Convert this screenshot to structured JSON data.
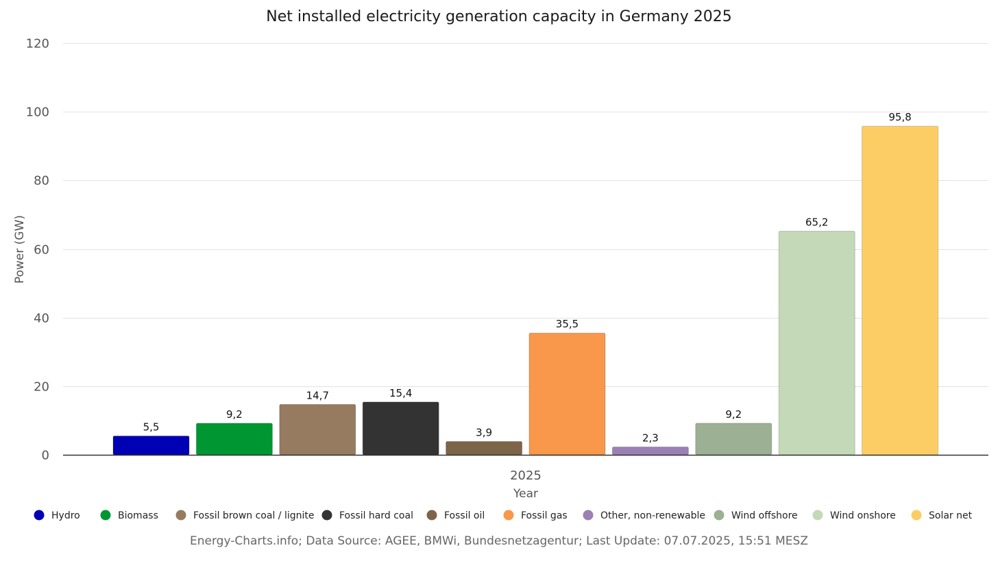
{
  "chart_data": {
    "type": "bar",
    "title": "Net installed electricity generation capacity in Germany 2025",
    "xlabel": "Year",
    "ylabel": "Power (GW)",
    "categories": [
      "2025"
    ],
    "ylim": [
      0,
      120
    ],
    "yticks": [
      0,
      20,
      40,
      60,
      80,
      100,
      120
    ],
    "grid": true,
    "legend_position": "bottom",
    "series": [
      {
        "name": "Hydro",
        "values": [
          5.5
        ],
        "label": "5,5",
        "color": "#0000b4"
      },
      {
        "name": "Biomass",
        "values": [
          9.2
        ],
        "label": "9,2",
        "color": "#009632"
      },
      {
        "name": "Fossil brown coal / lignite",
        "values": [
          14.7
        ],
        "label": "14,7",
        "color": "#967b61"
      },
      {
        "name": "Fossil hard coal",
        "values": [
          15.4
        ],
        "label": "15,4",
        "color": "#333333"
      },
      {
        "name": "Fossil oil",
        "values": [
          3.9
        ],
        "label": "3,9",
        "color": "#7d6448"
      },
      {
        "name": "Fossil gas",
        "values": [
          35.5
        ],
        "label": "35,5",
        "color": "#f9974b"
      },
      {
        "name": "Other, non-renewable",
        "values": [
          2.3
        ],
        "label": "2,3",
        "color": "#9a80b3"
      },
      {
        "name": "Wind offshore",
        "values": [
          9.2
        ],
        "label": "9,2",
        "color": "#9cb093"
      },
      {
        "name": "Wind onshore",
        "values": [
          65.2
        ],
        "label": "65,2",
        "color": "#c3d9b7"
      },
      {
        "name": "Solar net",
        "values": [
          95.8
        ],
        "label": "95,8",
        "color": "#fdcd65"
      }
    ]
  },
  "footer": "Energy-Charts.info; Data Source: AGEE, BMWi, Bundesnetzagentur; Last Update: 07.07.2025, 15:51 MESZ"
}
